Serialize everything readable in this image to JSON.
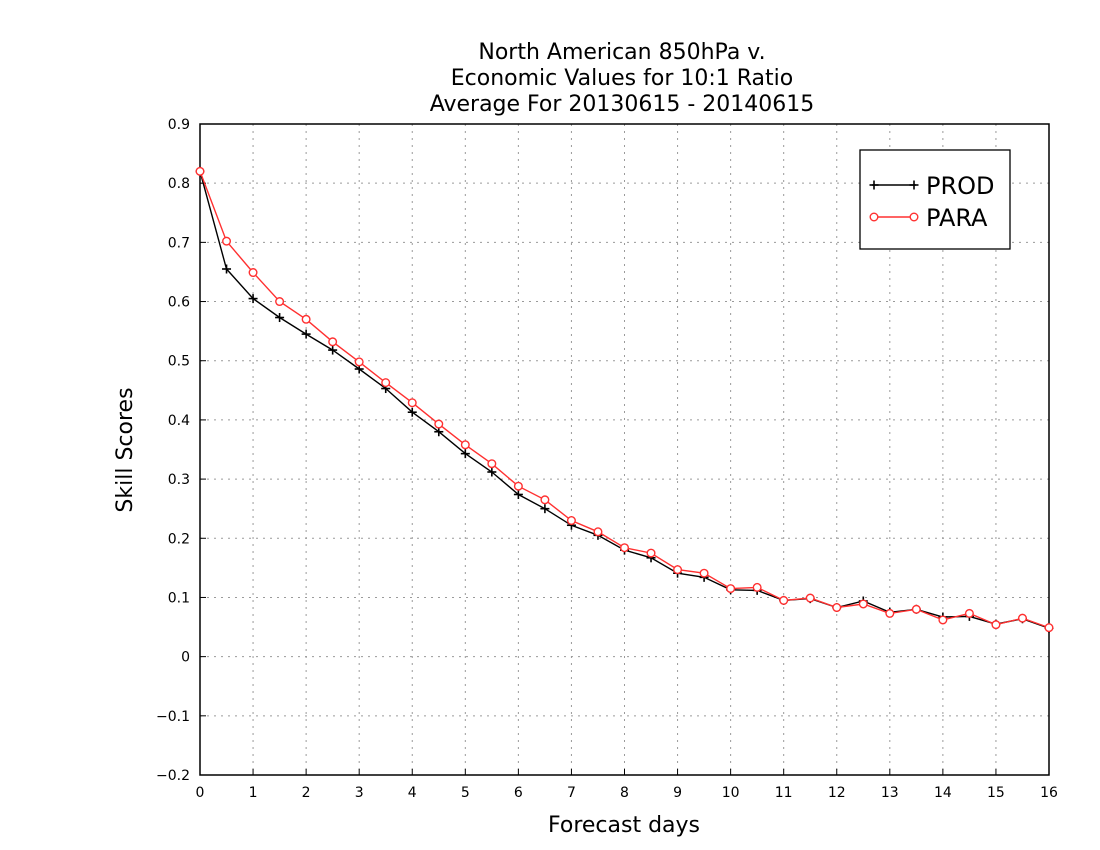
{
  "chart_data": {
    "type": "line",
    "title": [
      "North American 850hPa v.",
      "Economic Values for 10:1 Ratio",
      "Average For 20130615 - 20140615"
    ],
    "xlabel": "Forecast days",
    "ylabel": "Skill Scores",
    "xlim": [
      0,
      16
    ],
    "ylim": [
      -0.2,
      0.9
    ],
    "xticks": [
      0,
      1,
      2,
      3,
      4,
      5,
      6,
      7,
      8,
      9,
      10,
      11,
      12,
      13,
      14,
      15,
      16
    ],
    "yticks": [
      -0.2,
      -0.1,
      0,
      0.1,
      0.2,
      0.3,
      0.4,
      0.5,
      0.6,
      0.7,
      0.8,
      0.9
    ],
    "ytick_labels": [
      "−0.2",
      "−0.1",
      "0",
      "0.1",
      "0.2",
      "0.3",
      "0.4",
      "0.5",
      "0.6",
      "0.7",
      "0.8",
      "0.9"
    ],
    "grid": true,
    "legend_position": "top-right",
    "x": [
      0,
      0.5,
      1,
      1.5,
      2,
      2.5,
      3,
      3.5,
      4,
      4.5,
      5,
      5.5,
      6,
      6.5,
      7,
      7.5,
      8,
      8.5,
      9,
      9.5,
      10,
      10.5,
      11,
      11.5,
      12,
      12.5,
      13,
      13.5,
      14,
      14.5,
      15,
      15.5,
      16
    ],
    "series": [
      {
        "name": "PROD",
        "color": "#000000",
        "marker": "plus",
        "values": [
          0.82,
          0.655,
          0.605,
          0.573,
          0.545,
          0.518,
          0.486,
          0.453,
          0.413,
          0.38,
          0.343,
          0.312,
          0.274,
          0.25,
          0.222,
          0.205,
          0.18,
          0.167,
          0.141,
          0.134,
          0.113,
          0.112,
          0.095,
          0.098,
          0.083,
          0.094,
          0.075,
          0.08,
          0.067,
          0.068,
          0.055,
          0.064,
          0.048
        ]
      },
      {
        "name": "PARA",
        "color": "#ff3030",
        "marker": "circle",
        "values": [
          0.82,
          0.702,
          0.649,
          0.6,
          0.57,
          0.532,
          0.498,
          0.463,
          0.429,
          0.393,
          0.358,
          0.326,
          0.288,
          0.265,
          0.23,
          0.211,
          0.184,
          0.175,
          0.147,
          0.141,
          0.115,
          0.117,
          0.095,
          0.099,
          0.083,
          0.089,
          0.073,
          0.08,
          0.062,
          0.073,
          0.054,
          0.065,
          0.049
        ]
      }
    ]
  }
}
